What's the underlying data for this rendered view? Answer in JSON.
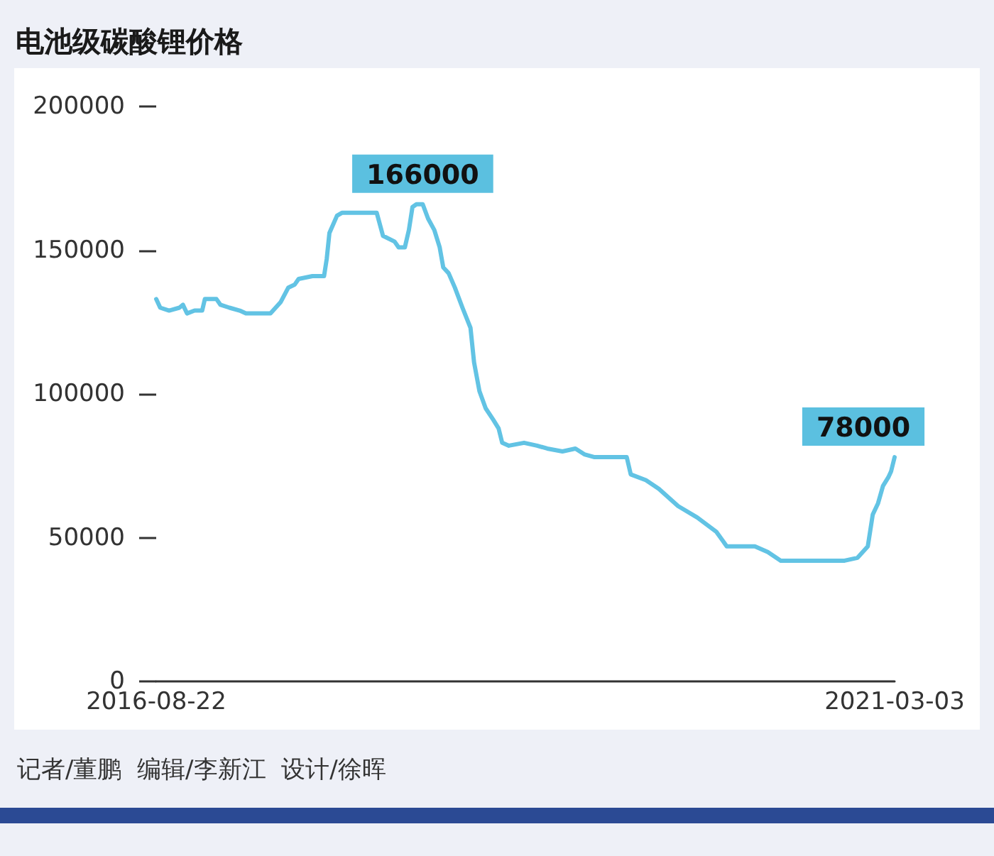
{
  "chart_data": {
    "type": "line",
    "title": "电池级碳酸锂价格",
    "x": [
      "2016-08-22",
      "2016-08-31",
      "2016-09-20",
      "2016-10-13",
      "2016-10-21",
      "2016-10-30",
      "2016-11-16",
      "2016-12-03",
      "2016-12-09",
      "2017-01-04",
      "2017-01-13",
      "2017-02-02",
      "2017-02-25",
      "2017-03-11",
      "2017-03-31",
      "2017-04-29",
      "2017-05-05",
      "2017-05-28",
      "2017-06-14",
      "2017-06-28",
      "2017-07-07",
      "2017-08-07",
      "2017-09-02",
      "2017-09-08",
      "2017-09-14",
      "2017-10-01",
      "2017-10-12",
      "2017-10-30",
      "2017-11-16",
      "2017-12-20",
      "2017-12-29",
      "2018-01-12",
      "2018-02-07",
      "2018-02-16",
      "2018-03-02",
      "2018-03-11",
      "2018-03-19",
      "2018-03-28",
      "2018-04-11",
      "2018-04-23",
      "2018-05-07",
      "2018-05-19",
      "2018-05-27",
      "2018-06-08",
      "2018-06-22",
      "2018-07-09",
      "2018-07-27",
      "2018-08-04",
      "2018-08-16",
      "2018-08-30",
      "2018-09-16",
      "2018-09-28",
      "2018-10-06",
      "2018-10-21",
      "2018-11-24",
      "2018-12-23",
      "2019-01-15",
      "2019-02-18",
      "2019-03-19",
      "2019-04-08",
      "2019-05-01",
      "2019-06-13",
      "2019-07-12",
      "2019-07-21",
      "2019-08-24",
      "2019-09-22",
      "2019-11-04",
      "2019-12-17",
      "2020-01-29",
      "2020-02-21",
      "2020-03-12",
      "2020-04-24",
      "2020-05-23",
      "2020-06-21",
      "2020-07-19",
      "2020-08-31",
      "2020-11-11",
      "2020-12-10",
      "2021-01-02",
      "2021-01-13",
      "2021-01-25",
      "2021-02-05",
      "2021-02-17",
      "2021-02-23",
      "2021-03-03"
    ],
    "series": [
      {
        "color": "#62c3e4",
        "values": [
          133000,
          130000,
          129000,
          130000,
          131000,
          128000,
          129000,
          129000,
          133000,
          133000,
          131000,
          130000,
          129000,
          128000,
          128000,
          128000,
          128000,
          132000,
          137000,
          138000,
          140000,
          141000,
          141000,
          147000,
          156000,
          162000,
          163000,
          163000,
          163000,
          163000,
          163000,
          155000,
          153000,
          151000,
          151000,
          157000,
          165000,
          166000,
          166000,
          161000,
          157000,
          151000,
          144000,
          142000,
          137000,
          130000,
          123000,
          111000,
          101000,
          95000,
          91000,
          88000,
          83000,
          82000,
          83000,
          82000,
          81000,
          80000,
          81000,
          79000,
          78000,
          78000,
          78000,
          72000,
          70000,
          67000,
          61000,
          57000,
          52000,
          47000,
          47000,
          47000,
          45000,
          42000,
          42000,
          42000,
          42000,
          43000,
          47000,
          58000,
          62000,
          68000,
          71000,
          73000,
          78000
        ],
        "value_labels": [
          null,
          null,
          null,
          null,
          null,
          null,
          null,
          null,
          null,
          null,
          null,
          null,
          null,
          null,
          null,
          null,
          null,
          null,
          null,
          null,
          null,
          null,
          null,
          null,
          null,
          null,
          null,
          null,
          null,
          null,
          null,
          null,
          null,
          null,
          null,
          null,
          null,
          null,
          "166000",
          null,
          null,
          null,
          null,
          null,
          null,
          null,
          null,
          null,
          null,
          null,
          null,
          null,
          null,
          null,
          null,
          null,
          null,
          null,
          null,
          null,
          null,
          null,
          null,
          null,
          null,
          null,
          null,
          null,
          null,
          null,
          null,
          null,
          null,
          null,
          null,
          null,
          null,
          null,
          null,
          null,
          null,
          null,
          null,
          null,
          "78000"
        ]
      }
    ],
    "xlim": [
      "2016-08-22",
      "2021-03-03"
    ],
    "xticks": [
      "2016-08-22",
      "2021-03-03"
    ],
    "ylim": [
      0,
      200000
    ],
    "yticks": [
      0,
      50000,
      100000,
      150000,
      200000
    ],
    "grid": false,
    "annotations": [
      "记者/董鹏  编辑/李新江  设计/徐晖"
    ]
  }
}
